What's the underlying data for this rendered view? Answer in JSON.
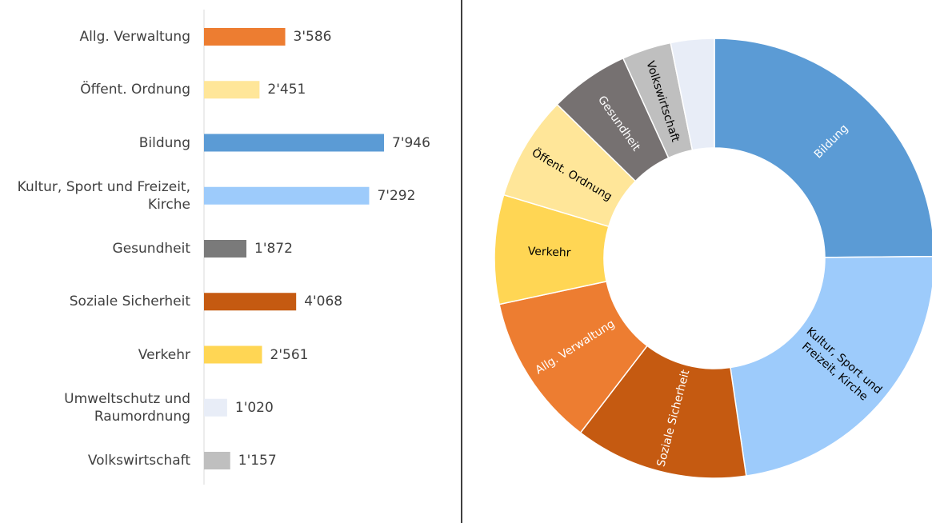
{
  "chart_data": [
    {
      "type": "bar",
      "orientation": "horizontal",
      "categories": [
        "Allg. Verwaltung",
        "Öffent. Ordnung",
        "Bildung",
        "Kultur, Sport und Freizeit,\nKirche",
        "Gesundheit",
        "Soziale Sicherheit",
        "Verkehr",
        "Umweltschutz und\nRaumordnung",
        "Volkswirtschaft"
      ],
      "values": [
        3586,
        2451,
        7946,
        7292,
        1872,
        4068,
        2561,
        1020,
        1157
      ],
      "value_labels": [
        "3'586",
        "2'451",
        "7'946",
        "7'292",
        "1'872",
        "4'068",
        "2'561",
        "1'020",
        "1'157"
      ],
      "colors": [
        "#ed7d31",
        "#ffe699",
        "#5b9bd5",
        "#9dcbfb",
        "#7a7a7a",
        "#c55a11",
        "#ffd654",
        "#e8edf7",
        "#bfbfbf"
      ]
    },
    {
      "type": "donut",
      "categories": [
        "Bildung",
        "Kultur, Sport und\nFreizeit, Kirche",
        "Soziale Sicherheit",
        "Allg. Verwaltung",
        "Verkehr",
        "Öffent. Ordnung",
        "Gesundheit",
        "Volkswirtschaft",
        null
      ],
      "values": [
        7946,
        7292,
        4068,
        3586,
        2561,
        2451,
        1872,
        1157,
        1020
      ],
      "colors": [
        "#5b9bd5",
        "#9dcbfb",
        "#c55a11",
        "#ed7d31",
        "#ffd654",
        "#ffe699",
        "#767171",
        "#bfbfbf",
        "#e8edf7"
      ],
      "label_colors": [
        "#ffffff",
        "#000000",
        "#ffffff",
        "#ffffff",
        "#000000",
        "#000000",
        "#ffffff",
        "#000000",
        "#000000"
      ]
    }
  ]
}
